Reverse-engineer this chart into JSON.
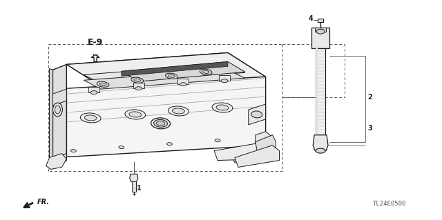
{
  "bg_color": "#ffffff",
  "line_color": "#1a1a1a",
  "gray1": "#888888",
  "gray2": "#aaaaaa",
  "gray3": "#cccccc",
  "dashed_color": "#555555",
  "label_color": "#1a1a1a",
  "ref_label": "E-9",
  "diagram_code": "TL24E0500",
  "part_numbers": [
    "1",
    "2",
    "3",
    "4"
  ],
  "figsize": [
    6.4,
    3.19
  ],
  "dpi": 100
}
